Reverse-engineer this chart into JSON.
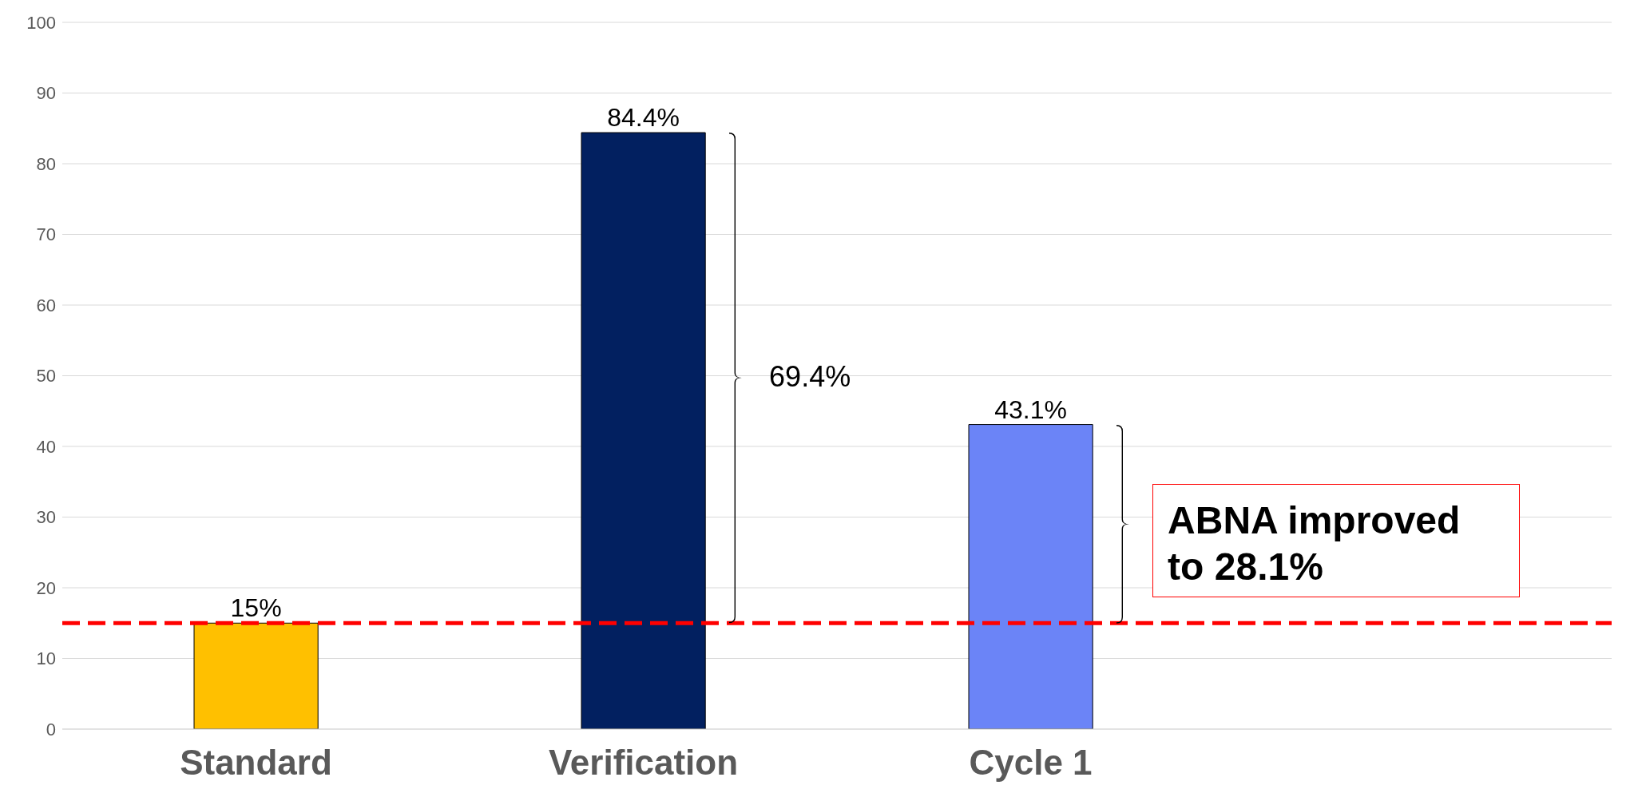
{
  "chart_data": {
    "type": "bar",
    "categories": [
      "Standard",
      "Verification",
      "Cycle 1",
      null
    ],
    "values": [
      15,
      84.4,
      43.1,
      null
    ],
    "colors": [
      "#ffc000",
      "#022060",
      "#6b84f7",
      null
    ],
    "value_labels": [
      "15%",
      "84.4%",
      "43.1%",
      null
    ],
    "ylim": [
      0,
      100
    ],
    "yticks": [
      0,
      10,
      20,
      30,
      40,
      50,
      60,
      70,
      80,
      90,
      100
    ],
    "grid": "y",
    "ref_lines": [
      {
        "axis": "y",
        "value": 15,
        "color": "#ff0000",
        "line_style": "dashed"
      }
    ],
    "annotations": [
      "69.4%",
      "ABNA improved to 28.1%"
    ]
  }
}
